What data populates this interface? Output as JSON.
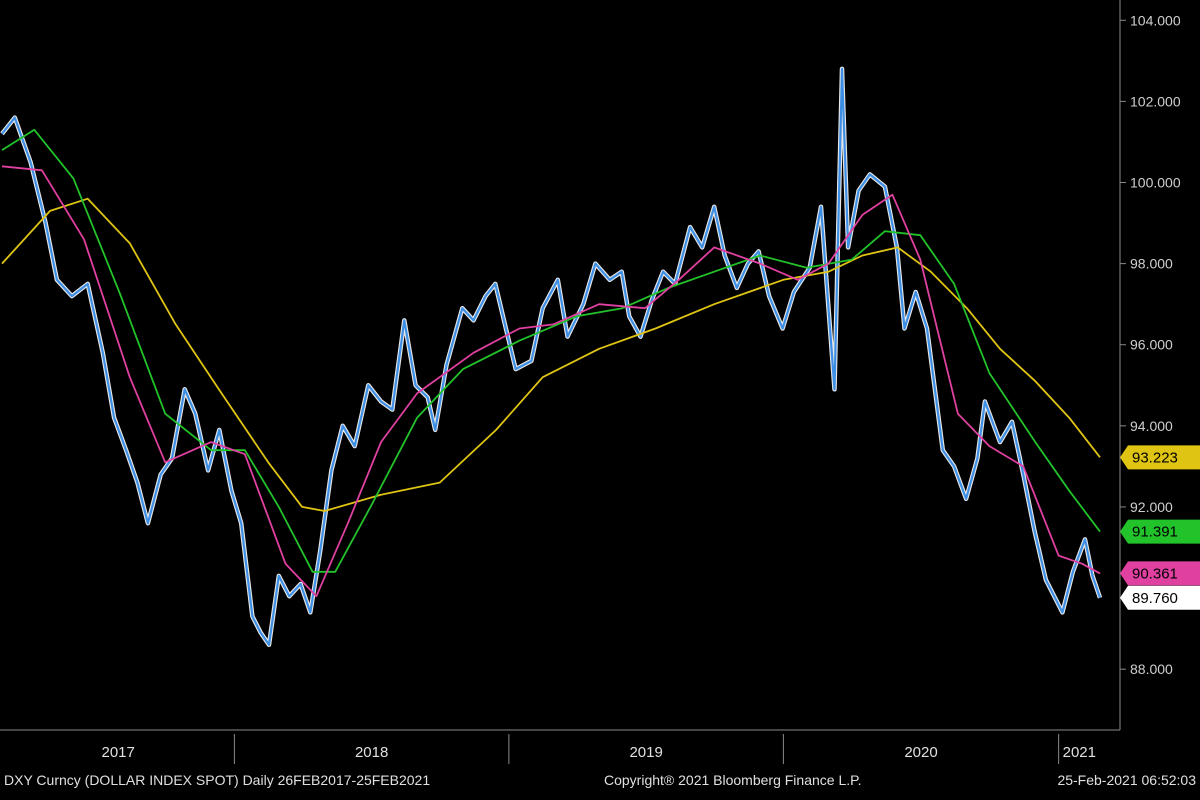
{
  "chart_data": {
    "type": "line",
    "x_range": [
      "2017-02-26",
      "2021-02-25"
    ],
    "ylim": [
      86.5,
      104.5
    ],
    "yticks": [
      "104.000",
      "102.000",
      "100.000",
      "98.000",
      "96.000",
      "94.000",
      "92.000",
      "88.000"
    ],
    "x_period_labels": [
      "2017",
      "2018",
      "2019",
      "2020",
      "2021"
    ],
    "grid": false,
    "series": [
      {
        "color": "#3d8fe6",
        "highlight": "#ffffff",
        "values": [
          [
            "2017-02-26",
            101.2
          ],
          [
            "2017-03-15",
            101.6
          ],
          [
            "2017-04-05",
            100.5
          ],
          [
            "2017-04-25",
            99.0
          ],
          [
            "2017-05-10",
            97.6
          ],
          [
            "2017-05-30",
            97.2
          ],
          [
            "2017-06-20",
            97.5
          ],
          [
            "2017-07-10",
            95.8
          ],
          [
            "2017-07-25",
            94.2
          ],
          [
            "2017-08-10",
            93.4
          ],
          [
            "2017-08-25",
            92.6
          ],
          [
            "2017-09-08",
            91.6
          ],
          [
            "2017-09-25",
            92.8
          ],
          [
            "2017-10-10",
            93.2
          ],
          [
            "2017-10-27",
            94.9
          ],
          [
            "2017-11-10",
            94.3
          ],
          [
            "2017-11-27",
            92.9
          ],
          [
            "2017-12-12",
            93.9
          ],
          [
            "2017-12-28",
            92.4
          ],
          [
            "2018-01-10",
            91.6
          ],
          [
            "2018-01-25",
            89.3
          ],
          [
            "2018-02-05",
            88.9
          ],
          [
            "2018-02-16",
            88.6
          ],
          [
            "2018-03-01",
            90.3
          ],
          [
            "2018-03-15",
            89.8
          ],
          [
            "2018-03-30",
            90.1
          ],
          [
            "2018-04-12",
            89.4
          ],
          [
            "2018-04-25",
            90.9
          ],
          [
            "2018-05-10",
            92.9
          ],
          [
            "2018-05-25",
            94.0
          ],
          [
            "2018-06-10",
            93.5
          ],
          [
            "2018-06-28",
            95.0
          ],
          [
            "2018-07-15",
            94.6
          ],
          [
            "2018-07-30",
            94.4
          ],
          [
            "2018-08-15",
            96.6
          ],
          [
            "2018-08-30",
            95.0
          ],
          [
            "2018-09-15",
            94.7
          ],
          [
            "2018-09-25",
            93.9
          ],
          [
            "2018-10-10",
            95.5
          ],
          [
            "2018-10-31",
            96.9
          ],
          [
            "2018-11-15",
            96.6
          ],
          [
            "2018-12-01",
            97.2
          ],
          [
            "2018-12-14",
            97.5
          ],
          [
            "2018-12-28",
            96.4
          ],
          [
            "2019-01-10",
            95.4
          ],
          [
            "2019-01-31",
            95.6
          ],
          [
            "2019-02-15",
            96.9
          ],
          [
            "2019-03-07",
            97.6
          ],
          [
            "2019-03-20",
            96.2
          ],
          [
            "2019-04-10",
            97.0
          ],
          [
            "2019-04-26",
            98.0
          ],
          [
            "2019-05-15",
            97.6
          ],
          [
            "2019-05-31",
            97.8
          ],
          [
            "2019-06-10",
            96.7
          ],
          [
            "2019-06-25",
            96.2
          ],
          [
            "2019-07-10",
            97.1
          ],
          [
            "2019-07-25",
            97.8
          ],
          [
            "2019-08-10",
            97.5
          ],
          [
            "2019-08-30",
            98.9
          ],
          [
            "2019-09-15",
            98.4
          ],
          [
            "2019-10-01",
            99.4
          ],
          [
            "2019-10-15",
            98.2
          ],
          [
            "2019-10-31",
            97.4
          ],
          [
            "2019-11-15",
            98.0
          ],
          [
            "2019-11-29",
            98.3
          ],
          [
            "2019-12-13",
            97.2
          ],
          [
            "2019-12-31",
            96.4
          ],
          [
            "2020-01-15",
            97.3
          ],
          [
            "2020-02-05",
            97.9
          ],
          [
            "2020-02-20",
            99.4
          ],
          [
            "2020-03-09",
            94.9
          ],
          [
            "2020-03-19",
            102.8
          ],
          [
            "2020-03-27",
            98.4
          ],
          [
            "2020-04-10",
            99.8
          ],
          [
            "2020-04-25",
            100.2
          ],
          [
            "2020-05-15",
            99.9
          ],
          [
            "2020-05-31",
            98.4
          ],
          [
            "2020-06-10",
            96.4
          ],
          [
            "2020-06-25",
            97.3
          ],
          [
            "2020-07-10",
            96.4
          ],
          [
            "2020-07-31",
            93.4
          ],
          [
            "2020-08-15",
            93.0
          ],
          [
            "2020-08-31",
            92.2
          ],
          [
            "2020-09-15",
            93.2
          ],
          [
            "2020-09-25",
            94.6
          ],
          [
            "2020-10-15",
            93.6
          ],
          [
            "2020-10-31",
            94.1
          ],
          [
            "2020-11-15",
            92.8
          ],
          [
            "2020-11-30",
            91.4
          ],
          [
            "2020-12-15",
            90.2
          ],
          [
            "2021-01-06",
            89.4
          ],
          [
            "2021-01-20",
            90.4
          ],
          [
            "2021-02-05",
            91.2
          ],
          [
            "2021-02-15",
            90.3
          ],
          [
            "2021-02-25",
            89.76
          ]
        ]
      },
      {
        "color": "#e040a0",
        "label": "90.361",
        "values": [
          [
            "2017-02-26",
            100.4
          ],
          [
            "2017-04-20",
            100.3
          ],
          [
            "2017-06-15",
            98.6
          ],
          [
            "2017-08-15",
            95.2
          ],
          [
            "2017-10-01",
            93.1
          ],
          [
            "2017-12-01",
            93.6
          ],
          [
            "2018-01-15",
            93.3
          ],
          [
            "2018-03-10",
            90.6
          ],
          [
            "2018-04-20",
            89.8
          ],
          [
            "2018-06-01",
            91.6
          ],
          [
            "2018-07-15",
            93.6
          ],
          [
            "2018-09-01",
            94.8
          ],
          [
            "2018-11-15",
            95.8
          ],
          [
            "2019-01-15",
            96.4
          ],
          [
            "2019-03-01",
            96.5
          ],
          [
            "2019-05-01",
            97.0
          ],
          [
            "2019-07-01",
            96.9
          ],
          [
            "2019-08-15",
            97.6
          ],
          [
            "2019-10-01",
            98.4
          ],
          [
            "2019-12-01",
            98.0
          ],
          [
            "2020-01-20",
            97.6
          ],
          [
            "2020-03-01",
            98.0
          ],
          [
            "2020-04-15",
            99.2
          ],
          [
            "2020-05-25",
            99.7
          ],
          [
            "2020-07-01",
            98.1
          ],
          [
            "2020-08-20",
            94.3
          ],
          [
            "2020-10-01",
            93.5
          ],
          [
            "2020-11-15",
            93.0
          ],
          [
            "2021-01-01",
            90.8
          ],
          [
            "2021-02-01",
            90.6
          ],
          [
            "2021-02-25",
            90.361
          ]
        ]
      },
      {
        "color": "#22c22a",
        "label": "91.391",
        "values": [
          [
            "2017-02-26",
            100.8
          ],
          [
            "2017-04-10",
            101.3
          ],
          [
            "2017-06-01",
            100.1
          ],
          [
            "2017-08-01",
            97.3
          ],
          [
            "2017-10-01",
            94.3
          ],
          [
            "2017-12-01",
            93.4
          ],
          [
            "2018-01-15",
            93.4
          ],
          [
            "2018-03-01",
            92.0
          ],
          [
            "2018-04-15",
            90.4
          ],
          [
            "2018-05-15",
            90.4
          ],
          [
            "2018-07-01",
            92.0
          ],
          [
            "2018-09-01",
            94.2
          ],
          [
            "2018-11-01",
            95.4
          ],
          [
            "2019-01-15",
            96.1
          ],
          [
            "2019-04-01",
            96.7
          ],
          [
            "2019-06-01",
            96.9
          ],
          [
            "2019-08-01",
            97.4
          ],
          [
            "2019-10-01",
            97.8
          ],
          [
            "2019-12-01",
            98.2
          ],
          [
            "2020-02-01",
            97.9
          ],
          [
            "2020-04-01",
            98.1
          ],
          [
            "2020-05-15",
            98.8
          ],
          [
            "2020-07-01",
            98.7
          ],
          [
            "2020-08-15",
            97.5
          ],
          [
            "2020-10-01",
            95.3
          ],
          [
            "2020-12-01",
            93.6
          ],
          [
            "2021-01-15",
            92.4
          ],
          [
            "2021-02-25",
            91.391
          ]
        ]
      },
      {
        "color": "#e0c414",
        "label": "93.223",
        "values": [
          [
            "2017-02-26",
            98.0
          ],
          [
            "2017-05-01",
            99.3
          ],
          [
            "2017-06-20",
            99.6
          ],
          [
            "2017-08-15",
            98.5
          ],
          [
            "2017-10-15",
            96.5
          ],
          [
            "2017-12-15",
            94.8
          ],
          [
            "2018-02-15",
            93.1
          ],
          [
            "2018-04-01",
            92.0
          ],
          [
            "2018-05-01",
            91.9
          ],
          [
            "2018-07-15",
            92.3
          ],
          [
            "2018-10-01",
            92.6
          ],
          [
            "2018-12-15",
            93.9
          ],
          [
            "2019-02-15",
            95.2
          ],
          [
            "2019-05-01",
            95.9
          ],
          [
            "2019-07-15",
            96.4
          ],
          [
            "2019-10-01",
            97.0
          ],
          [
            "2020-01-01",
            97.6
          ],
          [
            "2020-03-01",
            97.8
          ],
          [
            "2020-04-15",
            98.2
          ],
          [
            "2020-06-01",
            98.4
          ],
          [
            "2020-07-15",
            97.8
          ],
          [
            "2020-09-01",
            96.9
          ],
          [
            "2020-10-15",
            95.9
          ],
          [
            "2020-12-01",
            95.1
          ],
          [
            "2021-01-15",
            94.2
          ],
          [
            "2021-02-25",
            93.223
          ]
        ]
      }
    ],
    "last_price_label": "89.760",
    "last_price_color": "#ffffff"
  },
  "footer": {
    "left": "DXY Curncy (DOLLAR INDEX SPOT)   Daily 26FEB2017-25FEB2021",
    "center": "Copyright® 2021 Bloomberg Finance L.P.",
    "right": "25-Feb-2021 06:52:03"
  }
}
